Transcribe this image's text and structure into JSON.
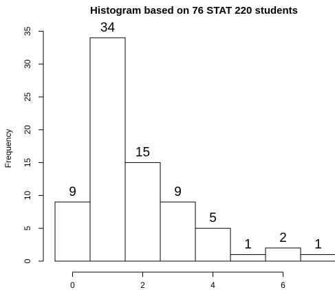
{
  "chart_data": {
    "type": "bar",
    "title": "Histogram based on 76 STAT 220 students",
    "xlabel": "",
    "ylabel": "Frequency",
    "bins": [
      {
        "start": -0.5,
        "end": 0.5,
        "value": 9
      },
      {
        "start": 0.5,
        "end": 1.5,
        "value": 34
      },
      {
        "start": 1.5,
        "end": 2.5,
        "value": 15
      },
      {
        "start": 2.5,
        "end": 3.5,
        "value": 9
      },
      {
        "start": 3.5,
        "end": 4.5,
        "value": 5
      },
      {
        "start": 4.5,
        "end": 5.5,
        "value": 1
      },
      {
        "start": 5.5,
        "end": 6.5,
        "value": 2
      },
      {
        "start": 6.5,
        "end": 7.5,
        "value": 1
      }
    ],
    "values": [
      9,
      34,
      15,
      9,
      5,
      1,
      2,
      1
    ],
    "data_labels": [
      "9",
      "34",
      "15",
      "9",
      "5",
      "1",
      "2",
      "1"
    ],
    "xticks": [
      0,
      2,
      4,
      6
    ],
    "yticks": [
      0,
      5,
      10,
      15,
      20,
      25,
      30,
      35
    ],
    "xlim": [
      -0.5,
      7.5
    ],
    "ylim": [
      0,
      35
    ],
    "grid": false,
    "legend": "none"
  }
}
